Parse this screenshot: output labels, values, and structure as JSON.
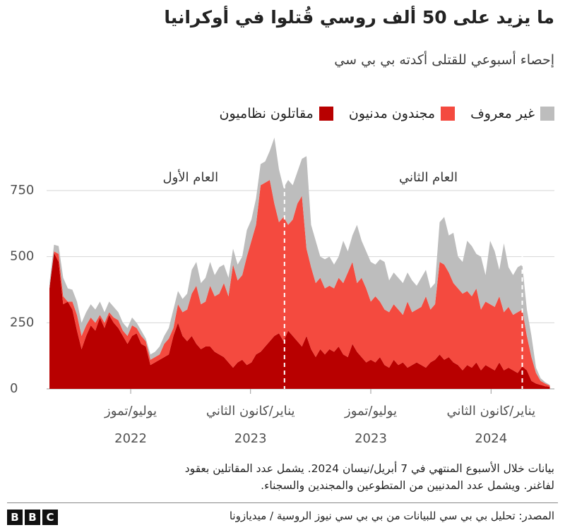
{
  "chart_data": {
    "type": "stacked_area",
    "title": "ما يزيد على 50 ألف روسي قُتلوا في أوكرانيا",
    "subtitle": "إحصاء أسبوعي للقتلى أكدته بي بي سي",
    "categories": [
      null,
      null,
      null,
      null,
      null,
      null,
      null,
      null,
      null,
      null,
      null,
      null,
      null,
      null,
      null,
      null,
      null,
      null,
      null,
      null,
      null,
      null,
      null,
      null,
      null,
      null,
      null,
      null,
      null,
      null,
      null,
      null,
      null,
      null,
      null,
      null,
      null,
      null,
      null,
      null,
      null,
      null,
      null,
      null,
      null,
      null,
      null,
      null,
      null,
      null,
      null,
      null,
      null,
      null,
      null,
      null,
      null,
      null,
      null,
      null,
      null,
      null,
      null,
      null,
      null,
      null,
      null,
      null,
      null,
      null,
      null,
      null,
      null,
      null,
      null,
      null,
      null,
      null,
      null,
      null,
      null,
      null,
      null,
      null,
      null,
      null,
      null,
      null,
      null,
      null,
      null,
      null,
      null,
      null,
      null,
      null,
      null,
      null,
      null,
      null,
      null,
      null,
      null,
      null,
      null,
      null,
      null,
      null,
      null,
      null
    ],
    "series": [
      {
        "name": "غير معروف",
        "color": "#bdbdbd",
        "values": [
          20,
          25,
          30,
          70,
          50,
          45,
          50,
          50,
          50,
          50,
          50,
          50,
          40,
          40,
          40,
          30,
          30,
          30,
          30,
          20,
          20,
          10,
          20,
          20,
          30,
          30,
          40,
          70,
          50,
          50,
          60,
          90,
          90,
          80,
          90,
          90,
          80,
          100,
          70,
          70,
          60,
          60,
          70,
          100,
          80,
          100,
          80,
          80,
          110,
          250,
          200,
          110,
          170,
          130,
          120,
          140,
          350,
          160,
          160,
          80,
          110,
          110,
          90,
          80,
          160,
          80,
          100,
          220,
          140,
          140,
          150,
          120,
          160,
          180,
          120,
          120,
          120,
          120,
          110,
          120,
          90,
          110,
          100,
          80,
          80,
          150,
          180,
          140,
          190,
          120,
          120,
          190,
          190,
          130,
          200,
          100,
          240,
          210,
          100,
          260,
          150,
          150,
          170,
          170,
          100,
          80,
          20,
          10,
          5,
          3
        ]
      },
      {
        "name": "مجندون مدنيون",
        "color": "#f44a3f",
        "values": [
          0,
          5,
          30,
          30,
          0,
          30,
          60,
          50,
          40,
          30,
          30,
          10,
          20,
          10,
          20,
          30,
          20,
          30,
          40,
          20,
          30,
          20,
          20,
          20,
          20,
          50,
          60,
          30,
          70,
          90,
          120,
          160,
          220,
          170,
          170,
          230,
          210,
          230,
          280,
          250,
          390,
          310,
          320,
          410,
          460,
          490,
          630,
          620,
          610,
          500,
          420,
          470,
          400,
          440,
          520,
          570,
          330,
          310,
          280,
          270,
          250,
          240,
          240,
          260,
          270,
          320,
          310,
          260,
          300,
          280,
          220,
          250,
          210,
          210,
          210,
          210,
          210,
          180,
          250,
          200,
          200,
          220,
          270,
          200,
          210,
          350,
          360,
          320,
          300,
          290,
          290,
          280,
          270,
          280,
          230,
          240,
          240,
          240,
          250,
          220,
          230,
          210,
          230,
          215,
          130,
          90,
          40,
          15,
          10,
          4
        ]
      },
      {
        "name": "مقاتلون نظاميون",
        "color": "#b80000",
        "values": [
          380,
          515,
          480,
          320,
          330,
          300,
          220,
          150,
          200,
          240,
          220,
          270,
          230,
          280,
          250,
          230,
          200,
          170,
          200,
          210,
          170,
          160,
          90,
          100,
          110,
          120,
          130,
          200,
          250,
          200,
          180,
          200,
          170,
          150,
          160,
          160,
          140,
          130,
          120,
          100,
          80,
          100,
          110,
          90,
          100,
          130,
          140,
          160,
          180,
          200,
          210,
          180,
          220,
          200,
          180,
          160,
          200,
          150,
          120,
          150,
          130,
          150,
          140,
          160,
          130,
          120,
          170,
          140,
          120,
          100,
          110,
          100,
          120,
          90,
          80,
          110,
          90,
          100,
          80,
          90,
          100,
          90,
          80,
          100,
          110,
          130,
          110,
          120,
          100,
          90,
          70,
          90,
          80,
          100,
          70,
          90,
          80,
          70,
          100,
          70,
          80,
          70,
          60,
          85,
          70,
          30,
          20,
          15,
          10,
          8
        ]
      }
    ],
    "ylim": [
      0,
      950
    ],
    "yticks": [
      0,
      250,
      500,
      750
    ],
    "grid": true,
    "xticks": [
      {
        "value": 17.7,
        "label": "يوليو/تموز"
      },
      {
        "value": 43.8,
        "label": "يناير/كانون الثاني"
      },
      {
        "value": 70,
        "label": "يوليو/تموز"
      },
      {
        "value": 96.2,
        "label": "يناير/كانون الثاني"
      }
    ],
    "xtick_years": [
      "2022",
      "2023",
      "2023",
      "2024"
    ],
    "periods": [
      {
        "label": "العام الأول",
        "end": 51.2
      },
      {
        "label": "العام الثاني",
        "end": 103
      }
    ],
    "footnote": [
      "بيانات خلال الأسبوع المنتهي في 7 أبريل/نيسان 2024. يشمل عدد المقاتلين بعقود",
      "لفاغنر. ويشمل عدد المدنيين من المتطوعين والمجندين والسجناء."
    ],
    "source": "المصدر: تحليل بي بي سي للبيانات من بي بي سي نيوز الروسية / ميديازونا",
    "logo": [
      "B",
      "B",
      "C"
    ]
  }
}
